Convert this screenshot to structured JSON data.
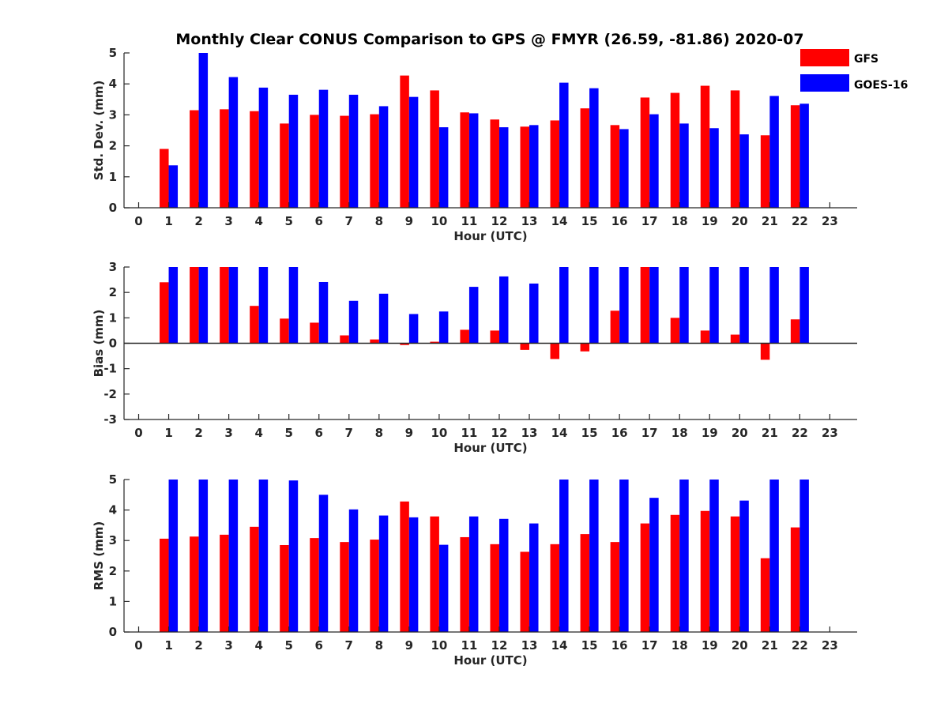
{
  "chart_data": {
    "title": "Monthly Clear CONUS Comparison to GPS @ FMYR (26.59, -81.86) 2020-07",
    "legend": {
      "placement": "top-right",
      "entries": [
        {
          "name": "GFS",
          "color": "#ff0000"
        },
        {
          "name": "GOES-16",
          "color": "#0000ff"
        }
      ]
    },
    "panels": [
      {
        "type": "bar",
        "xlabel": "Hour (UTC)",
        "ylabel": "Std. Dev. (mm)",
        "ylim": [
          0,
          5
        ],
        "yticks": [
          "0",
          "1",
          "2",
          "3",
          "4",
          "5"
        ],
        "xticks": [
          "0",
          "1",
          "2",
          "3",
          "4",
          "5",
          "6",
          "7",
          "8",
          "9",
          "10",
          "11",
          "12",
          "13",
          "14",
          "15",
          "16",
          "17",
          "18",
          "19",
          "20",
          "21",
          "22",
          "23"
        ],
        "x": [
          1,
          2,
          3,
          4,
          5,
          6,
          7,
          8,
          9,
          10,
          11,
          12,
          13,
          14,
          15,
          16,
          17,
          18,
          19,
          20,
          21,
          22
        ],
        "series": [
          {
            "name": "GFS",
            "color": "#ff0000",
            "values": [
              1.9,
              3.15,
              3.18,
              3.12,
              2.72,
              3.0,
              2.97,
              3.02,
              4.27,
              3.79,
              3.08,
              2.85,
              2.62,
              2.82,
              3.21,
              2.67,
              3.56,
              3.71,
              3.94,
              3.79,
              2.34,
              3.31
            ]
          },
          {
            "name": "GOES-16",
            "color": "#0000ff",
            "values": [
              1.37,
              5.0,
              4.22,
              3.88,
              3.65,
              3.81,
              3.65,
              3.28,
              3.58,
              2.6,
              3.05,
              2.6,
              2.67,
              4.04,
              3.86,
              2.54,
              3.02,
              2.72,
              2.57,
              2.37,
              3.61,
              3.36
            ]
          }
        ]
      },
      {
        "type": "bar",
        "xlabel": "Hour (UTC)",
        "ylabel": "Bias (mm)",
        "ylim": [
          -3,
          3
        ],
        "yticks": [
          "-3",
          "-2",
          "-1",
          "0",
          "1",
          "2",
          "3"
        ],
        "xticks": [
          "0",
          "1",
          "2",
          "3",
          "4",
          "5",
          "6",
          "7",
          "8",
          "9",
          "10",
          "11",
          "12",
          "13",
          "14",
          "15",
          "16",
          "17",
          "18",
          "19",
          "20",
          "21",
          "22",
          "23"
        ],
        "x": [
          1,
          2,
          3,
          4,
          5,
          6,
          7,
          8,
          9,
          10,
          11,
          12,
          13,
          14,
          15,
          16,
          17,
          18,
          19,
          20,
          21,
          22
        ],
        "series": [
          {
            "name": "GFS",
            "color": "#ff0000",
            "values": [
              2.4,
              3.0,
              3.0,
              1.47,
              0.97,
              0.81,
              0.31,
              0.15,
              -0.07,
              0.06,
              0.53,
              0.5,
              -0.26,
              -0.62,
              -0.32,
              1.28,
              3.0,
              1.0,
              0.5,
              0.34,
              -0.65,
              0.94
            ]
          },
          {
            "name": "GOES-16",
            "color": "#0000ff",
            "values": [
              3.0,
              3.0,
              3.0,
              3.0,
              3.0,
              2.41,
              1.67,
              1.95,
              1.15,
              1.25,
              2.22,
              2.63,
              2.35,
              3.0,
              3.0,
              3.0,
              3.0,
              3.0,
              3.0,
              3.0,
              3.0,
              3.0
            ]
          }
        ]
      },
      {
        "type": "bar",
        "xlabel": "Hour (UTC)",
        "ylabel": "RMS (mm)",
        "ylim": [
          0,
          5
        ],
        "yticks": [
          "0",
          "1",
          "2",
          "3",
          "4",
          "5"
        ],
        "xticks": [
          "0",
          "1",
          "2",
          "3",
          "4",
          "5",
          "6",
          "7",
          "8",
          "9",
          "10",
          "11",
          "12",
          "13",
          "14",
          "15",
          "16",
          "17",
          "18",
          "19",
          "20",
          "21",
          "22",
          "23"
        ],
        "x": [
          1,
          2,
          3,
          4,
          5,
          6,
          7,
          8,
          9,
          10,
          11,
          12,
          13,
          14,
          15,
          16,
          17,
          18,
          19,
          20,
          21,
          22
        ],
        "series": [
          {
            "name": "GFS",
            "color": "#ff0000",
            "values": [
              3.06,
              3.13,
              3.19,
              3.45,
              2.85,
              3.08,
              2.95,
              3.03,
              4.28,
              3.79,
              3.11,
              2.88,
              2.63,
              2.88,
              3.21,
              2.95,
              3.56,
              3.84,
              3.97,
              3.79,
              2.42,
              3.43
            ]
          },
          {
            "name": "GOES-16",
            "color": "#0000ff",
            "values": [
              5.0,
              5.0,
              5.0,
              5.0,
              4.97,
              4.5,
              4.02,
              3.82,
              3.76,
              2.86,
              3.79,
              3.71,
              3.56,
              5.0,
              5.0,
              5.0,
              4.4,
              5.0,
              5.0,
              4.31,
              5.0,
              5.0
            ]
          }
        ]
      }
    ]
  }
}
